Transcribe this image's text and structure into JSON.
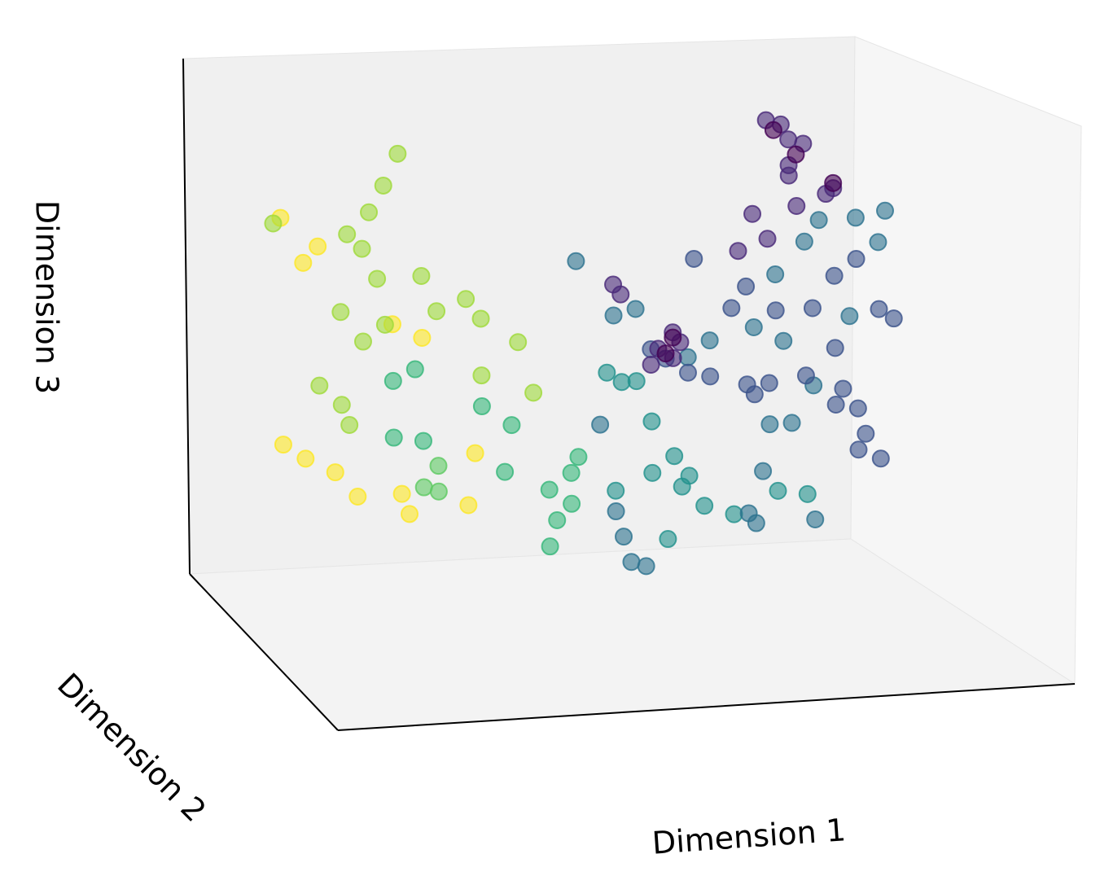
{
  "chart_data": {
    "type": "scatter3d",
    "xlabel": "Dimension 1",
    "ylabel": "Dimension 2",
    "zlabel": "Dimension 3",
    "xlim": [
      0,
      1
    ],
    "ylim": [
      0,
      1
    ],
    "zlim": [
      0,
      1
    ],
    "series": [
      {
        "color": "#fde725",
        "x": [
          0.03,
          0.06,
          0.08,
          0.03,
          0.06,
          0.1,
          0.13,
          0.19,
          0.2,
          0.28,
          0.29,
          0.22,
          0.18
        ],
        "y": [
          0.5,
          0.5,
          0.5,
          0.5,
          0.5,
          0.5,
          0.5,
          0.5,
          0.5,
          0.5,
          0.5,
          0.5,
          0.5
        ],
        "z": [
          0.84,
          0.75,
          0.78,
          0.4,
          0.37,
          0.34,
          0.29,
          0.29,
          0.25,
          0.26,
          0.36,
          0.59,
          0.62
        ]
      },
      {
        "color": "#9fda3a",
        "x": [
          0.02,
          0.12,
          0.14,
          0.16,
          0.19,
          0.17,
          0.15,
          0.11,
          0.14,
          0.17,
          0.08,
          0.11,
          0.12,
          0.22,
          0.24,
          0.28,
          0.3,
          0.35,
          0.37,
          0.3
        ],
        "y": [
          0.5,
          0.5,
          0.5,
          0.5,
          0.5,
          0.5,
          0.5,
          0.5,
          0.5,
          0.5,
          0.5,
          0.5,
          0.5,
          0.5,
          0.5,
          0.5,
          0.5,
          0.5,
          0.5,
          0.5
        ],
        "z": [
          0.83,
          0.8,
          0.77,
          0.71,
          0.95,
          0.89,
          0.84,
          0.65,
          0.59,
          0.62,
          0.51,
          0.47,
          0.43,
          0.71,
          0.64,
          0.66,
          0.62,
          0.57,
          0.47,
          0.51
        ]
      },
      {
        "color": "#5ec962",
        "x": [
          0.22,
          0.24,
          0.24
        ],
        "y": [
          0.5,
          0.5,
          0.5
        ],
        "z": [
          0.3,
          0.29,
          0.34
        ]
      },
      {
        "color": "#35b779",
        "x": [
          0.18,
          0.21,
          0.22,
          0.18,
          0.3,
          0.34,
          0.33,
          0.39,
          0.4,
          0.42,
          0.43,
          0.39,
          0.42
        ],
        "y": [
          0.5,
          0.5,
          0.5,
          0.5,
          0.5,
          0.5,
          0.5,
          0.5,
          0.5,
          0.5,
          0.5,
          0.5,
          0.5
        ],
        "z": [
          0.51,
          0.53,
          0.39,
          0.4,
          0.45,
          0.41,
          0.32,
          0.28,
          0.22,
          0.31,
          0.34,
          0.17,
          0.25
        ]
      },
      {
        "color": "#21918c",
        "x": [
          0.47,
          0.49,
          0.51,
          0.53,
          0.56,
          0.57,
          0.6,
          0.64,
          0.55,
          0.48,
          0.53,
          0.7,
          0.74,
          0.58
        ],
        "y": [
          0.5,
          0.5,
          0.5,
          0.5,
          0.5,
          0.5,
          0.5,
          0.5,
          0.5,
          0.5,
          0.5,
          0.5,
          0.5,
          0.5
        ],
        "z": [
          0.5,
          0.48,
          0.48,
          0.4,
          0.33,
          0.27,
          0.23,
          0.21,
          0.17,
          0.27,
          0.3,
          0.25,
          0.24,
          0.29
        ]
      },
      {
        "color": "#2c728e",
        "x": [
          0.48,
          0.49,
          0.5,
          0.52,
          0.46,
          0.43,
          0.48,
          0.51,
          0.58,
          0.61,
          0.67,
          0.7,
          0.74,
          0.76,
          0.81,
          0.85,
          0.84,
          0.71,
          0.75,
          0.8,
          0.69,
          0.72,
          0.68,
          0.66,
          0.67,
          0.75
        ],
        "y": [
          0.5,
          0.5,
          0.5,
          0.5,
          0.5,
          0.5,
          0.5,
          0.5,
          0.5,
          0.5,
          0.5,
          0.5,
          0.5,
          0.5,
          0.5,
          0.5,
          0.5,
          0.5,
          0.5,
          0.5,
          0.5,
          0.5,
          0.5,
          0.5,
          0.5,
          0.5
        ],
        "z": [
          0.23,
          0.18,
          0.13,
          0.12,
          0.4,
          0.72,
          0.61,
          0.62,
          0.52,
          0.55,
          0.57,
          0.67,
          0.73,
          0.77,
          0.77,
          0.78,
          0.72,
          0.54,
          0.45,
          0.58,
          0.38,
          0.38,
          0.29,
          0.21,
          0.19,
          0.19
        ]
      },
      {
        "color": "#3b528b",
        "x": [
          0.53,
          0.55,
          0.58,
          0.61,
          0.66,
          0.67,
          0.69,
          0.64,
          0.66,
          0.7,
          0.75,
          0.78,
          0.81,
          0.84,
          0.86,
          0.79,
          0.78,
          0.81,
          0.82,
          0.81,
          0.84,
          0.78,
          0.74,
          0.59
        ],
        "y": [
          0.5,
          0.5,
          0.5,
          0.5,
          0.5,
          0.5,
          0.5,
          0.5,
          0.5,
          0.5,
          0.5,
          0.5,
          0.5,
          0.5,
          0.5,
          0.5,
          0.5,
          0.5,
          0.5,
          0.5,
          0.5,
          0.5,
          0.5,
          0.5
        ],
        "z": [
          0.54,
          0.52,
          0.49,
          0.48,
          0.46,
          0.44,
          0.46,
          0.61,
          0.65,
          0.6,
          0.6,
          0.66,
          0.69,
          0.59,
          0.57,
          0.44,
          0.41,
          0.4,
          0.35,
          0.32,
          0.3,
          0.52,
          0.47,
          0.71
        ]
      },
      {
        "color": "#482878",
        "x": [
          0.69,
          0.71,
          0.72,
          0.74,
          0.72,
          0.72,
          0.77,
          0.78,
          0.73,
          0.67,
          0.69,
          0.65,
          0.48,
          0.49,
          0.56,
          0.57,
          0.54,
          0.56,
          0.53
        ],
        "y": [
          0.5,
          0.5,
          0.5,
          0.5,
          0.5,
          0.5,
          0.5,
          0.5,
          0.5,
          0.5,
          0.5,
          0.5,
          0.5,
          0.5,
          0.5,
          0.5,
          0.5,
          0.5,
          0.5
        ],
        "z": [
          0.97,
          0.96,
          0.93,
          0.92,
          0.88,
          0.86,
          0.82,
          0.83,
          0.8,
          0.79,
          0.74,
          0.72,
          0.67,
          0.65,
          0.57,
          0.55,
          0.54,
          0.52,
          0.51
        ]
      },
      {
        "color": "#440154",
        "x": [
          0.7,
          0.73,
          0.78,
          0.56,
          0.55
        ],
        "y": [
          0.5,
          0.5,
          0.5,
          0.5,
          0.5
        ],
        "z": [
          0.95,
          0.9,
          0.84,
          0.56,
          0.53
        ]
      }
    ]
  }
}
